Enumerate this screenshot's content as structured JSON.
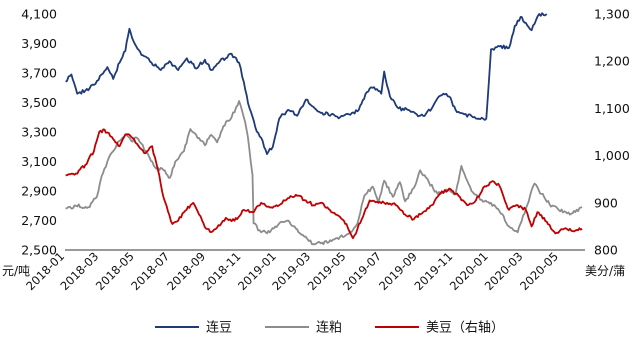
{
  "chart_data": {
    "type": "line",
    "title": "",
    "left_axis": {
      "unit_label": "元/吨",
      "ylim": [
        2500,
        4100
      ],
      "ticks": [
        "2,500",
        "2,700",
        "2,900",
        "3,100",
        "3,300",
        "3,500",
        "3,700",
        "3,900",
        "4,100"
      ]
    },
    "right_axis": {
      "unit_label": "美分/蒲",
      "ylim": [
        800,
        1300
      ],
      "ticks": [
        "800",
        "900",
        "1,000",
        "1,100",
        "1,200",
        "1,300"
      ]
    },
    "x_range": [
      "2018-01-01",
      "2020-06-15"
    ],
    "x_ticks": [
      "2018-01",
      "2018-03",
      "2018-05",
      "2018-07",
      "2018-09",
      "2018-11",
      "2019-01",
      "2019-03",
      "2019-05",
      "2019-07",
      "2019-09",
      "2019-11",
      "2020-01",
      "2020-03",
      "2020-05"
    ],
    "grid": false,
    "legend_position": "bottom",
    "series": [
      {
        "name": "连豆",
        "axis": "left",
        "color": "#1f3a78",
        "points": [
          [
            "2018-01-02",
            3640
          ],
          [
            "2018-01-12",
            3690
          ],
          [
            "2018-01-22",
            3560
          ],
          [
            "2018-02-05",
            3580
          ],
          [
            "2018-02-20",
            3620
          ],
          [
            "2018-03-05",
            3690
          ],
          [
            "2018-03-15",
            3740
          ],
          [
            "2018-03-25",
            3660
          ],
          [
            "2018-04-05",
            3770
          ],
          [
            "2018-04-15",
            3850
          ],
          [
            "2018-04-22",
            4000
          ],
          [
            "2018-05-01",
            3900
          ],
          [
            "2018-05-15",
            3820
          ],
          [
            "2018-05-30",
            3770
          ],
          [
            "2018-06-15",
            3720
          ],
          [
            "2018-06-30",
            3780
          ],
          [
            "2018-07-15",
            3720
          ],
          [
            "2018-07-30",
            3800
          ],
          [
            "2018-08-15",
            3730
          ],
          [
            "2018-08-30",
            3790
          ],
          [
            "2018-09-10",
            3720
          ],
          [
            "2018-09-25",
            3780
          ],
          [
            "2018-10-05",
            3800
          ],
          [
            "2018-10-15",
            3830
          ],
          [
            "2018-10-28",
            3770
          ],
          [
            "2018-11-05",
            3640
          ],
          [
            "2018-11-15",
            3460
          ],
          [
            "2018-11-25",
            3330
          ],
          [
            "2018-12-05",
            3260
          ],
          [
            "2018-12-15",
            3150
          ],
          [
            "2018-12-25",
            3200
          ],
          [
            "2019-01-05",
            3390
          ],
          [
            "2019-01-20",
            3450
          ],
          [
            "2019-02-05",
            3410
          ],
          [
            "2019-02-20",
            3520
          ],
          [
            "2019-03-05",
            3470
          ],
          [
            "2019-03-20",
            3430
          ],
          [
            "2019-04-05",
            3420
          ],
          [
            "2019-04-20",
            3400
          ],
          [
            "2019-05-05",
            3420
          ],
          [
            "2019-05-20",
            3440
          ],
          [
            "2019-06-05",
            3570
          ],
          [
            "2019-06-15",
            3600
          ],
          [
            "2019-06-30",
            3560
          ],
          [
            "2019-07-05",
            3710
          ],
          [
            "2019-07-15",
            3540
          ],
          [
            "2019-07-30",
            3460
          ],
          [
            "2019-08-15",
            3450
          ],
          [
            "2019-08-30",
            3420
          ],
          [
            "2019-09-10",
            3410
          ],
          [
            "2019-09-25",
            3460
          ],
          [
            "2019-10-05",
            3530
          ],
          [
            "2019-10-15",
            3560
          ],
          [
            "2019-10-25",
            3540
          ],
          [
            "2019-11-05",
            3450
          ],
          [
            "2019-11-20",
            3420
          ],
          [
            "2019-12-05",
            3400
          ],
          [
            "2019-12-15",
            3390
          ],
          [
            "2019-12-28",
            3390
          ],
          [
            "2020-01-05",
            3860
          ],
          [
            "2020-01-20",
            3880
          ],
          [
            "2020-02-05",
            3870
          ],
          [
            "2020-02-15",
            4020
          ],
          [
            "2020-02-25",
            4080
          ],
          [
            "2020-03-05",
            4040
          ],
          [
            "2020-03-15",
            3990
          ],
          [
            "2020-03-28",
            4100
          ],
          [
            "2020-04-10",
            4100
          ]
        ]
      },
      {
        "name": "连粕",
        "axis": "left",
        "color": "#8c8c8c",
        "points": [
          [
            "2018-01-02",
            2780
          ],
          [
            "2018-01-20",
            2800
          ],
          [
            "2018-02-10",
            2790
          ],
          [
            "2018-02-25",
            2860
          ],
          [
            "2018-03-05",
            3000
          ],
          [
            "2018-03-15",
            3100
          ],
          [
            "2018-03-25",
            3170
          ],
          [
            "2018-04-05",
            3240
          ],
          [
            "2018-04-15",
            3280
          ],
          [
            "2018-04-25",
            3240
          ],
          [
            "2018-05-05",
            3260
          ],
          [
            "2018-05-20",
            3170
          ],
          [
            "2018-06-05",
            3060
          ],
          [
            "2018-06-20",
            3040
          ],
          [
            "2018-07-01",
            2990
          ],
          [
            "2018-07-10",
            3100
          ],
          [
            "2018-07-25",
            3170
          ],
          [
            "2018-08-05",
            3320
          ],
          [
            "2018-08-15",
            3280
          ],
          [
            "2018-08-30",
            3210
          ],
          [
            "2018-09-10",
            3280
          ],
          [
            "2018-09-20",
            3230
          ],
          [
            "2018-10-01",
            3340
          ],
          [
            "2018-10-15",
            3400
          ],
          [
            "2018-10-28",
            3510
          ],
          [
            "2018-11-05",
            3400
          ],
          [
            "2018-11-12",
            3270
          ],
          [
            "2018-11-20",
            3010
          ],
          [
            "2018-11-22",
            2680
          ],
          [
            "2018-12-05",
            2620
          ],
          [
            "2018-12-20",
            2620
          ],
          [
            "2019-01-05",
            2680
          ],
          [
            "2019-01-20",
            2700
          ],
          [
            "2019-02-05",
            2640
          ],
          [
            "2019-02-20",
            2590
          ],
          [
            "2019-03-05",
            2540
          ],
          [
            "2019-03-20",
            2550
          ],
          [
            "2019-04-05",
            2560
          ],
          [
            "2019-04-20",
            2590
          ],
          [
            "2019-05-05",
            2610
          ],
          [
            "2019-05-20",
            2680
          ],
          [
            "2019-06-01",
            2870
          ],
          [
            "2019-06-15",
            2930
          ],
          [
            "2019-06-25",
            2820
          ],
          [
            "2019-07-05",
            2970
          ],
          [
            "2019-07-20",
            2860
          ],
          [
            "2019-08-01",
            2960
          ],
          [
            "2019-08-10",
            2830
          ],
          [
            "2019-08-25",
            2920
          ],
          [
            "2019-09-05",
            3040
          ],
          [
            "2019-09-20",
            2960
          ],
          [
            "2019-10-05",
            2880
          ],
          [
            "2019-10-20",
            2910
          ],
          [
            "2019-11-05",
            2880
          ],
          [
            "2019-11-15",
            3070
          ],
          [
            "2019-11-25",
            2970
          ],
          [
            "2019-12-05",
            2890
          ],
          [
            "2019-12-20",
            2840
          ],
          [
            "2020-01-05",
            2820
          ],
          [
            "2020-01-20",
            2760
          ],
          [
            "2020-02-05",
            2660
          ],
          [
            "2020-02-20",
            2620
          ],
          [
            "2020-03-05",
            2780
          ],
          [
            "2020-03-20",
            2950
          ],
          [
            "2020-04-01",
            2880
          ],
          [
            "2020-04-15",
            2810
          ],
          [
            "2020-05-01",
            2770
          ],
          [
            "2020-05-20",
            2740
          ],
          [
            "2020-06-10",
            2790
          ]
        ]
      },
      {
        "name": "美豆（右轴）",
        "axis": "right",
        "color": "#c00000",
        "points": [
          [
            "2018-01-02",
            958
          ],
          [
            "2018-01-20",
            962
          ],
          [
            "2018-02-05",
            980
          ],
          [
            "2018-02-20",
            1010
          ],
          [
            "2018-03-01",
            1050
          ],
          [
            "2018-03-10",
            1055
          ],
          [
            "2018-03-25",
            1035
          ],
          [
            "2018-04-05",
            1020
          ],
          [
            "2018-04-15",
            1045
          ],
          [
            "2018-04-25",
            1040
          ],
          [
            "2018-05-05",
            1025
          ],
          [
            "2018-05-20",
            1005
          ],
          [
            "2018-05-31",
            1020
          ],
          [
            "2018-06-10",
            970
          ],
          [
            "2018-06-20",
            910
          ],
          [
            "2018-07-05",
            855
          ],
          [
            "2018-07-15",
            862
          ],
          [
            "2018-07-25",
            880
          ],
          [
            "2018-08-10",
            900
          ],
          [
            "2018-08-20",
            875
          ],
          [
            "2018-08-30",
            848
          ],
          [
            "2018-09-10",
            838
          ],
          [
            "2018-09-25",
            852
          ],
          [
            "2018-10-05",
            868
          ],
          [
            "2018-10-20",
            862
          ],
          [
            "2018-11-05",
            885
          ],
          [
            "2018-11-20",
            880
          ],
          [
            "2018-12-05",
            900
          ],
          [
            "2018-12-20",
            890
          ],
          [
            "2019-01-05",
            895
          ],
          [
            "2019-01-20",
            910
          ],
          [
            "2019-02-05",
            915
          ],
          [
            "2019-02-20",
            905
          ],
          [
            "2019-03-05",
            895
          ],
          [
            "2019-03-20",
            900
          ],
          [
            "2019-04-05",
            880
          ],
          [
            "2019-04-20",
            870
          ],
          [
            "2019-05-01",
            855
          ],
          [
            "2019-05-12",
            825
          ],
          [
            "2019-05-20",
            845
          ],
          [
            "2019-06-01",
            880
          ],
          [
            "2019-06-10",
            905
          ],
          [
            "2019-06-25",
            900
          ],
          [
            "2019-07-10",
            900
          ],
          [
            "2019-07-25",
            895
          ],
          [
            "2019-08-10",
            875
          ],
          [
            "2019-08-25",
            865
          ],
          [
            "2019-09-10",
            880
          ],
          [
            "2019-09-25",
            895
          ],
          [
            "2019-10-10",
            920
          ],
          [
            "2019-10-25",
            930
          ],
          [
            "2019-11-10",
            915
          ],
          [
            "2019-11-25",
            895
          ],
          [
            "2019-12-10",
            905
          ],
          [
            "2019-12-25",
            935
          ],
          [
            "2020-01-10",
            945
          ],
          [
            "2020-01-20",
            935
          ],
          [
            "2020-02-05",
            885
          ],
          [
            "2020-02-20",
            895
          ],
          [
            "2020-03-05",
            885
          ],
          [
            "2020-03-15",
            850
          ],
          [
            "2020-03-25",
            880
          ],
          [
            "2020-04-10",
            860
          ],
          [
            "2020-04-25",
            835
          ],
          [
            "2020-05-10",
            845
          ],
          [
            "2020-05-25",
            840
          ],
          [
            "2020-06-10",
            845
          ]
        ]
      }
    ]
  }
}
